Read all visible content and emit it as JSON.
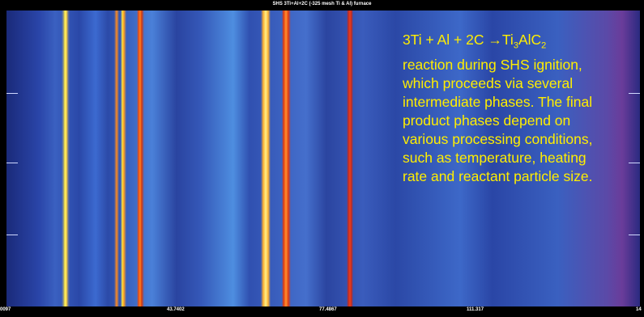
{
  "title": "SHS 3Ti+Al+2C (-325 mesh Ti & Al) furnace",
  "x_labels": [
    "0097",
    "43.7402",
    "77.4867",
    "111.317",
    "14"
  ],
  "caption": {
    "formula": [
      "3Ti + Al + 2C →Ti",
      "3",
      "AlC",
      "2"
    ],
    "lines": [
      "reaction during SHS ignition,",
      "which proceeds via several",
      "intermediate phases. The final",
      "product phases depend on",
      "various processing conditions,",
      "such as temperature, heating",
      "rate and reactant particle size."
    ]
  }
}
